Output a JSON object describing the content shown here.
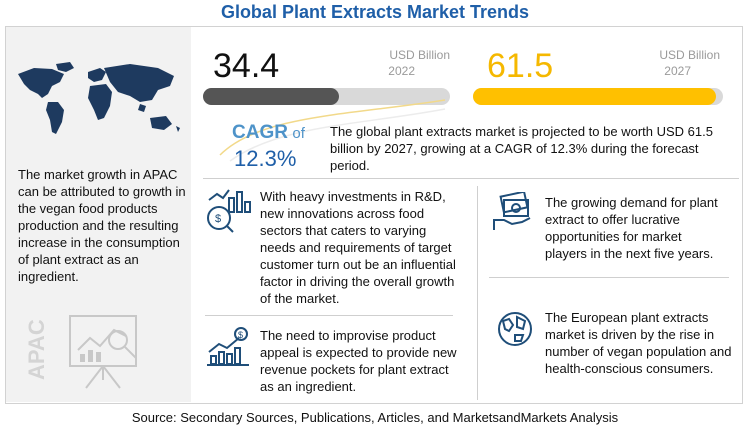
{
  "title": "Global Plant Extracts Market Trends",
  "apac": {
    "label": "APAC",
    "text": "The market growth in APAC can be attributed to growth in the vegan food products production and the resulting increase in the consumption of plant extract as an ingredient."
  },
  "stat_2022": {
    "value": "34.4",
    "unit": "USD Billion",
    "year": "2022",
    "bar_fill_pct": 55,
    "bar_color": "#555555"
  },
  "stat_2027": {
    "value": "61.5",
    "unit": "USD Billion",
    "year": "2027",
    "bar_fill_pct": 97,
    "bar_color": "#ffc000"
  },
  "cagr": {
    "label_a": "CAGR",
    "label_b": "of",
    "value": "12.3%",
    "text": "The global plant extracts market is projected to be worth USD 61.5 billion by 2027, growing at a CAGR of 12.3% during the forecast period."
  },
  "drivers": [
    {
      "icon": "investment-chart-icon",
      "text": "With heavy investments in R&D, new innovations across food sectors that caters to varying needs and requirements of target customer turn out be an influential factor in driving the overall growth of the market."
    },
    {
      "icon": "money-hand-icon",
      "text": "The growing demand for plant extract to offer lucrative opportunities for market players in the next five years."
    },
    {
      "icon": "growth-bars-icon",
      "text": "The need to improvise product appeal is expected to provide new revenue pockets for plant extract as an ingredient."
    },
    {
      "icon": "globe-icon",
      "text": "The European plant extracts market is driven by the rise in number of vegan population and health-conscious consumers."
    }
  ],
  "source": "Source: Secondary Sources, Publications, Articles, and MarketsandMarkets Analysis",
  "colors": {
    "brand_blue": "#1f5fa8",
    "accent_blue": "#4e93c9",
    "accent_yellow": "#ffc000"
  }
}
